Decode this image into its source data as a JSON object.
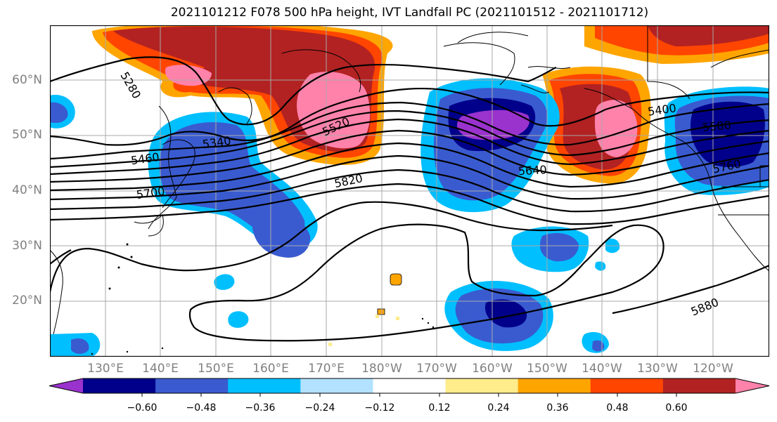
{
  "title": "2021101212 F078 500 hPa height, IVT Landfall PC (2021101512 - 2021101712)",
  "map": {
    "lat_labels": [
      "60°N",
      "50°N",
      "40°N",
      "30°N",
      "20°N"
    ],
    "lon_labels": [
      "130°E",
      "140°E",
      "150°E",
      "160°E",
      "170°E",
      "180°W",
      "170°W",
      "160°W",
      "150°W",
      "140°W",
      "130°W",
      "120°W"
    ],
    "contour_labels": [
      "5280",
      "5340",
      "5460",
      "5520",
      "5700",
      "5820",
      "5640",
      "5580",
      "5760",
      "5880",
      "5400"
    ],
    "legend": {
      "ticks": [
        "−0.60",
        "−0.48",
        "−0.36",
        "−0.24",
        "−0.12",
        "0.12",
        "0.24",
        "0.36",
        "0.48",
        "0.60"
      ],
      "colors": [
        "#9a32cd",
        "#00008b",
        "#3a5bd0",
        "#00bfff",
        "#b2e2ff",
        "#ffffff",
        "#ffec8b",
        "#ffa500",
        "#ff4500",
        "#b22222",
        "#ff82ab"
      ]
    }
  }
}
